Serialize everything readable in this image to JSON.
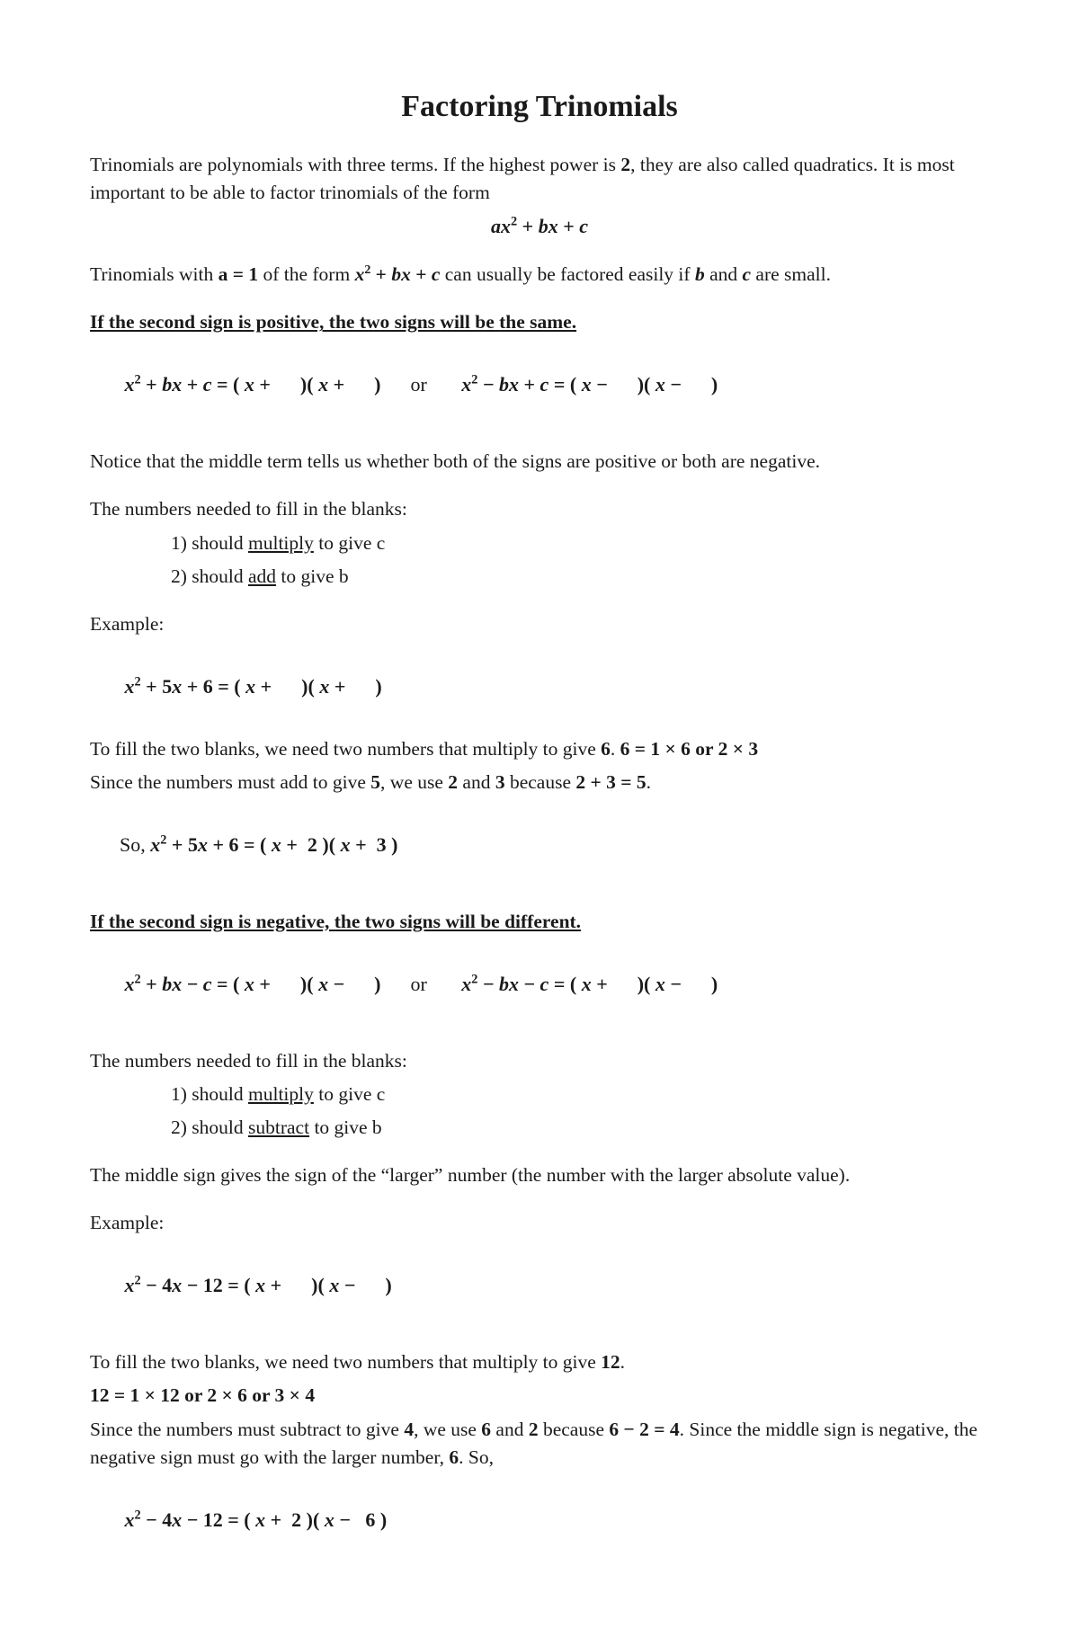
{
  "title": "Factoring Trinomials",
  "intro": {
    "line1a": "Trinomials are polynomials with three terms.  If the highest power is ",
    "two": "2",
    "line1b": ", they are also called quadratics.  It is most important to be able to factor trinomials of the form"
  },
  "generalForm": {
    "a": "a",
    "x1": "x",
    "sup1": "2",
    "plus1": " + ",
    "b": "b",
    "x2": "x",
    "plus2": " + ",
    "c": "c"
  },
  "aEquals1": {
    "pre": "Trinomials with ",
    "aeq1": "a = 1",
    "mid": " of the form  ",
    "x": "x",
    "sup": "2",
    "plus1": " + ",
    "b": "b",
    "x2": "x",
    "plus2": " + ",
    "c": "c",
    "after1": "  can usually be factored easily if ",
    "bital": "b",
    "after2": " and ",
    "cital": "c",
    "after3": " are small."
  },
  "rule1Heading": "If the second sign is positive, the two signs will be the same.",
  "rule1Eq": {
    "left": " x",
    "sup": "2",
    "plus": " + ",
    "b": "b",
    "x2": "x",
    "plus2": " + ",
    "c": "c",
    "eq": " = ( ",
    "x3": "x",
    "pl1": " +      )( ",
    "x4": "x",
    "pl2": " +      )",
    "or": "      or       ",
    "x5": "x",
    "sup2": "2",
    "minus": " − ",
    "b2": "b",
    "x6": "x",
    "plus3": " + ",
    "c2": "c",
    "eq2": " = ( ",
    "x7": "x",
    "mn1": " −      )( ",
    "x8": "x",
    "mn2": " −      )"
  },
  "noticeText": "Notice that the middle term tells us whether both of the signs are positive or both are negative.",
  "blanksIntro": "The numbers needed to fill in the blanks:",
  "blanks1_1a": "1)  should ",
  "blanks1_1u": "multiply",
  "blanks1_1b": " to give c",
  "blanks1_2a": "2)  should ",
  "blanks1_2u": "add",
  "blanks1_2b": " to give b",
  "exampleLabel": "Example:",
  "ex1Eq": {
    "x": " x",
    "sup": "2",
    "plus": " + ",
    "five": "5",
    "x2": "x",
    "plus2": " + ",
    "six": "6",
    "eq": " = ( ",
    "x3": "x",
    "pl1": " +      )( ",
    "x4": "x",
    "pl2": " +      )"
  },
  "ex1_line1a": "To fill the two blanks, we need two numbers that multiply to give ",
  "ex1_six": "6",
  "ex1_line1b": ".   ",
  "ex1_fact": "6 = 1 × 6 or 2 × 3",
  "ex1_line2a": "Since the numbers must add to give ",
  "ex1_five": "5",
  "ex1_line2b": ", we use ",
  "ex1_two": "2",
  "ex1_line2c": " and ",
  "ex1_three": "3",
  "ex1_line2d": " because ",
  "ex1_sum": "2 + 3 = 5",
  "ex1_line2e": ".",
  "ex1_so": "So, ",
  "ex1_final": {
    "x": "x",
    "sup": "2",
    "plus": " + ",
    "five": "5",
    "x2": "x",
    "plus2": " + ",
    "six": "6",
    "eq": " = ( ",
    "x3": "x",
    "pl1": " +  2 )( ",
    "x4": "x",
    "pl2": " +  3 )"
  },
  "rule2Heading": "If the second sign is negative, the two signs will be different.",
  "rule2Eq": {
    "x": " x",
    "sup": "2",
    "plus": " + ",
    "b": "b",
    "x2": "x",
    "minus": " − ",
    "c": "c",
    "eq": " = ( ",
    "x3": "x",
    "pl1": " +      )( ",
    "x4": "x",
    "mn1": " −      )",
    "or": "      or       ",
    "x5": "x",
    "sup2": "2",
    "minus2": " − ",
    "b2": "b",
    "x6": "x",
    "minus3": " − ",
    "c2": "c",
    "eq2": " = ( ",
    "x7": "x",
    "pl2": " +      )( ",
    "x8": "x",
    "mn2": " −      )"
  },
  "blanks2_1a": "1)  should ",
  "blanks2_1u": "multiply",
  "blanks2_1b": " to give c",
  "blanks2_2a": "2)  should ",
  "blanks2_2u": "subtract",
  "blanks2_2b": " to give b",
  "middleSignText": "The middle sign gives the sign of the “larger” number (the number with the larger absolute value).",
  "ex2Eq": {
    "x": " x",
    "sup": "2",
    "minus": " − ",
    "four": "4",
    "x2": "x",
    "minus2": " − ",
    "twelve": "12",
    "eq": " = ( ",
    "x3": "x",
    "pl1": " +      )( ",
    "x4": "x",
    "mn1": " −      )"
  },
  "ex2_line1a": "To fill the two blanks, we need two numbers that multiply to give ",
  "ex2_twelve": "12",
  "ex2_line1b": ".",
  "ex2_fact": "12 = 1 × 12 or 2 × 6 or 3 × 4",
  "ex2_line2a": "Since the numbers must subtract to give ",
  "ex2_four": "4",
  "ex2_line2b": ", we use ",
  "ex2_six": "6",
  "ex2_line2c": " and ",
  "ex2_two": "2",
  "ex2_line2d": " because ",
  "ex2_diff": "6 − 2 = 4",
  "ex2_line2e": ".  Since the middle sign is negative, the negative sign must go with the larger number, ",
  "ex2_sixb": "6",
  "ex2_line2f": ".  So,",
  "ex2_final": {
    "x": " x",
    "sup": "2",
    "minus": " − ",
    "four": "4",
    "x2": "x",
    "minus2": " − ",
    "twelve": "12",
    "eq": " = ( ",
    "x3": "x",
    "pl1": " +  2 )( ",
    "x4": "x",
    "mn1": " −   6 )"
  }
}
